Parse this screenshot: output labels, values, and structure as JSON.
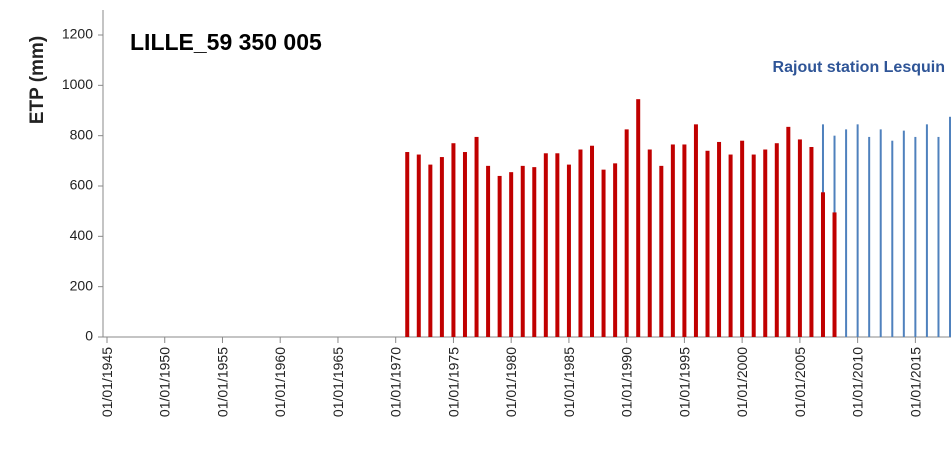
{
  "chart_data": {
    "type": "bar",
    "title": "LILLE_59 350 005",
    "y_label": "ETP (mm)",
    "annotation": "Rajout station Lesquin",
    "xlim": [
      "01/01/1945",
      "01/02/2018"
    ],
    "xticks": [
      "01/01/1945",
      "01/01/1950",
      "01/01/1955",
      "01/01/1960",
      "01/01/1965",
      "01/01/1970",
      "01/01/1975",
      "01/01/1980",
      "01/01/1985",
      "01/01/1990",
      "01/01/1995",
      "01/01/2000",
      "01/01/2005",
      "01/01/2010",
      "01/01/2015"
    ],
    "ylim": [
      0,
      1200
    ],
    "yticks": [
      0,
      200,
      400,
      600,
      800,
      1000,
      1200
    ],
    "grid": false,
    "series": [
      {
        "color": "#4f81bd",
        "x": [
          "01/01/2006",
          "01/01/2007",
          "01/01/2008",
          "01/01/2009",
          "01/01/2010",
          "01/01/2011",
          "01/01/2012",
          "01/01/2013",
          "01/01/2014",
          "01/01/2015",
          "01/01/2016",
          "01/01/2017",
          "01/01/2018"
        ],
        "values": [
          740,
          845,
          800,
          825,
          845,
          795,
          825,
          780,
          820,
          795,
          845,
          795,
          875
        ]
      },
      {
        "color": "#c00000",
        "x": [
          "01/01/1971",
          "01/01/1972",
          "01/01/1973",
          "01/01/1974",
          "01/01/1975",
          "01/01/1976",
          "01/01/1977",
          "01/01/1978",
          "01/01/1979",
          "01/01/1980",
          "01/01/1981",
          "01/01/1982",
          "01/01/1983",
          "01/01/1984",
          "01/01/1985",
          "01/01/1986",
          "01/01/1987",
          "01/01/1988",
          "01/01/1989",
          "01/01/1990",
          "01/01/1991",
          "01/01/1992",
          "01/01/1993",
          "01/01/1994",
          "01/01/1995",
          "01/01/1996",
          "01/01/1997",
          "01/01/1998",
          "01/01/1999",
          "01/01/2000",
          "01/01/2001",
          "01/01/2002",
          "01/01/2003",
          "01/01/2004",
          "01/01/2005",
          "01/01/2006",
          "01/01/2007",
          "01/01/2008"
        ],
        "values": [
          735,
          725,
          685,
          715,
          770,
          735,
          795,
          680,
          640,
          655,
          680,
          675,
          730,
          730,
          685,
          745,
          760,
          665,
          690,
          825,
          945,
          745,
          680,
          765,
          765,
          845,
          740,
          775,
          725,
          780,
          725,
          745,
          770,
          835,
          785,
          755,
          575,
          495
        ]
      }
    ]
  }
}
